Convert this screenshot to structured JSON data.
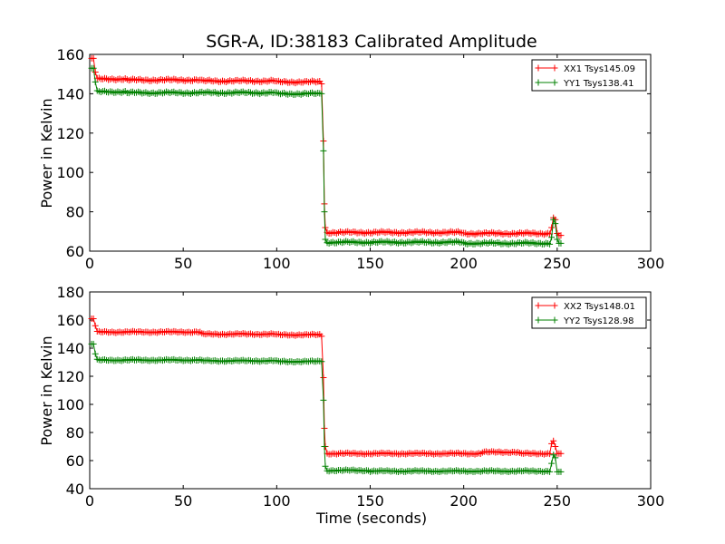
{
  "chart_data": [
    {
      "type": "line",
      "title": "SGR-A, ID:38183 Calibrated Amplitude",
      "xlabel": "",
      "ylabel": "Power in Kelvin",
      "xlim": [
        0,
        300
      ],
      "ylim": [
        60,
        160
      ],
      "xticks": [
        "0",
        "50",
        "100",
        "150",
        "200",
        "250",
        "300"
      ],
      "yticks": [
        "60",
        "80",
        "100",
        "120",
        "140",
        "160"
      ],
      "legend_position": "top-right",
      "series": [
        {
          "name": "XX1 Tsys145.09",
          "color": "#ff0000",
          "marker": "plus",
          "segments": [
            {
              "x0": 1,
              "x1": 3,
              "y": 158
            },
            {
              "x0": 3,
              "x1": 4,
              "y": 151
            },
            {
              "x0": 4,
              "x1": 20,
              "y": 147.5
            },
            {
              "x0": 20,
              "x1": 60,
              "y": 147
            },
            {
              "x0": 60,
              "x1": 100,
              "y": 146.5
            },
            {
              "x0": 100,
              "x1": 124,
              "y": 146
            },
            {
              "x0": 124,
              "x1": 125,
              "y": 145
            },
            {
              "x0": 125,
              "x1": 125.5,
              "y": 116
            },
            {
              "x0": 125.5,
              "x1": 126,
              "y": 84
            },
            {
              "x0": 126,
              "x1": 127,
              "y": 72
            },
            {
              "x0": 127,
              "x1": 200,
              "y": 69.5
            },
            {
              "x0": 200,
              "x1": 247,
              "y": 69
            },
            {
              "x0": 247,
              "x1": 248,
              "y": 72
            },
            {
              "x0": 248,
              "x1": 249,
              "y": 77
            },
            {
              "x0": 249,
              "x1": 250,
              "y": 76
            },
            {
              "x0": 250,
              "x1": 251,
              "y": 69
            },
            {
              "x0": 251,
              "x1": 252,
              "y": 68
            }
          ]
        },
        {
          "name": "YY1 Tsys138.41",
          "color": "#008000",
          "marker": "plus",
          "segments": [
            {
              "x0": 1,
              "x1": 3,
              "y": 153
            },
            {
              "x0": 3,
              "x1": 4,
              "y": 146
            },
            {
              "x0": 4,
              "x1": 20,
              "y": 141
            },
            {
              "x0": 20,
              "x1": 100,
              "y": 140.5
            },
            {
              "x0": 100,
              "x1": 124,
              "y": 140
            },
            {
              "x0": 124,
              "x1": 125,
              "y": 140
            },
            {
              "x0": 125,
              "x1": 125.5,
              "y": 111
            },
            {
              "x0": 125.5,
              "x1": 126,
              "y": 80
            },
            {
              "x0": 126,
              "x1": 127,
              "y": 66
            },
            {
              "x0": 127,
              "x1": 200,
              "y": 64.5
            },
            {
              "x0": 200,
              "x1": 247,
              "y": 64
            },
            {
              "x0": 247,
              "x1": 248,
              "y": 67
            },
            {
              "x0": 248,
              "x1": 249,
              "y": 76
            },
            {
              "x0": 249,
              "x1": 250,
              "y": 74
            },
            {
              "x0": 250,
              "x1": 251,
              "y": 66
            },
            {
              "x0": 251,
              "x1": 252,
              "y": 64
            }
          ]
        }
      ]
    },
    {
      "type": "line",
      "title": "",
      "xlabel": "Time (seconds)",
      "ylabel": "Power in Kelvin",
      "xlim": [
        0,
        300
      ],
      "ylim": [
        40,
        180
      ],
      "xticks": [
        "0",
        "50",
        "100",
        "150",
        "200",
        "250",
        "300"
      ],
      "yticks": [
        "40",
        "60",
        "80",
        "100",
        "120",
        "140",
        "160",
        "180"
      ],
      "legend_position": "top-right",
      "series": [
        {
          "name": "XX2 Tsys148.01",
          "color": "#ff0000",
          "marker": "plus",
          "segments": [
            {
              "x0": 1,
              "x1": 3,
              "y": 161
            },
            {
              "x0": 3,
              "x1": 4,
              "y": 156
            },
            {
              "x0": 4,
              "x1": 60,
              "y": 151.5
            },
            {
              "x0": 60,
              "x1": 100,
              "y": 150
            },
            {
              "x0": 100,
              "x1": 124,
              "y": 149.5
            },
            {
              "x0": 124,
              "x1": 125,
              "y": 148.5
            },
            {
              "x0": 125,
              "x1": 125.5,
              "y": 119
            },
            {
              "x0": 125.5,
              "x1": 126,
              "y": 83
            },
            {
              "x0": 126,
              "x1": 127,
              "y": 70
            },
            {
              "x0": 127,
              "x1": 210,
              "y": 65
            },
            {
              "x0": 210,
              "x1": 230,
              "y": 66
            },
            {
              "x0": 230,
              "x1": 247,
              "y": 65
            },
            {
              "x0": 247,
              "x1": 248,
              "y": 72
            },
            {
              "x0": 248,
              "x1": 249,
              "y": 74
            },
            {
              "x0": 249,
              "x1": 250,
              "y": 70
            },
            {
              "x0": 250,
              "x1": 252,
              "y": 65
            }
          ]
        },
        {
          "name": "YY2 Tsys128.98",
          "color": "#008000",
          "marker": "plus",
          "segments": [
            {
              "x0": 1,
              "x1": 3,
              "y": 143
            },
            {
              "x0": 3,
              "x1": 4,
              "y": 136
            },
            {
              "x0": 4,
              "x1": 60,
              "y": 131.5
            },
            {
              "x0": 60,
              "x1": 100,
              "y": 131
            },
            {
              "x0": 100,
              "x1": 124,
              "y": 130.5
            },
            {
              "x0": 124,
              "x1": 125,
              "y": 130.5
            },
            {
              "x0": 125,
              "x1": 125.5,
              "y": 103
            },
            {
              "x0": 125.5,
              "x1": 126,
              "y": 70
            },
            {
              "x0": 126,
              "x1": 127,
              "y": 56
            },
            {
              "x0": 127,
              "x1": 150,
              "y": 53
            },
            {
              "x0": 150,
              "x1": 247,
              "y": 52.5
            },
            {
              "x0": 247,
              "x1": 248,
              "y": 58
            },
            {
              "x0": 248,
              "x1": 249,
              "y": 64
            },
            {
              "x0": 249,
              "x1": 250,
              "y": 62
            },
            {
              "x0": 250,
              "x1": 252,
              "y": 52
            }
          ]
        }
      ]
    }
  ]
}
